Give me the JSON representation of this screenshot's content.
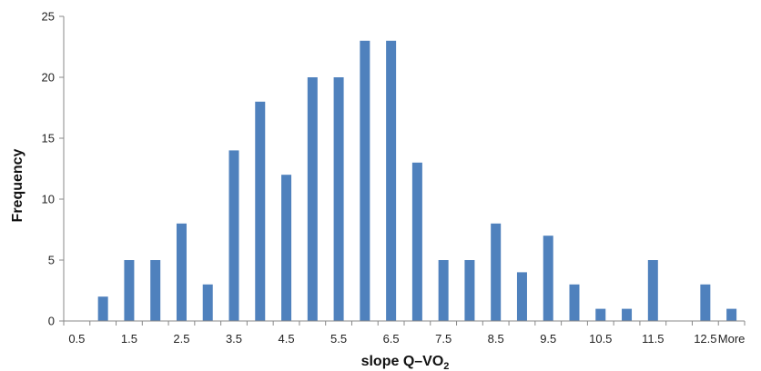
{
  "chart_data": {
    "type": "bar",
    "title": "",
    "xlabel": "slope Q–VO",
    "xlabel_subscript": "2",
    "ylabel": "Frequency",
    "ylim": [
      0,
      25
    ],
    "yticks": [
      0,
      5,
      10,
      15,
      20,
      25
    ],
    "grid": false,
    "legend": "none",
    "bar_color": "#4F81BD",
    "categories": [
      "0.5",
      "1",
      "1.5",
      "2",
      "2.5",
      "3",
      "3.5",
      "4",
      "4.5",
      "5",
      "5.5",
      "6",
      "6.5",
      "7",
      "7.5",
      "8",
      "8.5",
      "9",
      "9.5",
      "10",
      "10.5",
      "11",
      "11.5",
      "12",
      "12.5",
      "More"
    ],
    "xtick_labels": [
      "0.5",
      "1.5",
      "2.5",
      "3.5",
      "4.5",
      "5.5",
      "6.5",
      "7.5",
      "8.5",
      "9.5",
      "10.5",
      "11.5",
      "12.5",
      "More"
    ],
    "values": [
      0,
      2,
      5,
      5,
      8,
      3,
      14,
      18,
      12,
      20,
      20,
      23,
      23,
      13,
      5,
      5,
      8,
      4,
      7,
      3,
      1,
      1,
      5,
      0,
      3,
      1
    ]
  }
}
